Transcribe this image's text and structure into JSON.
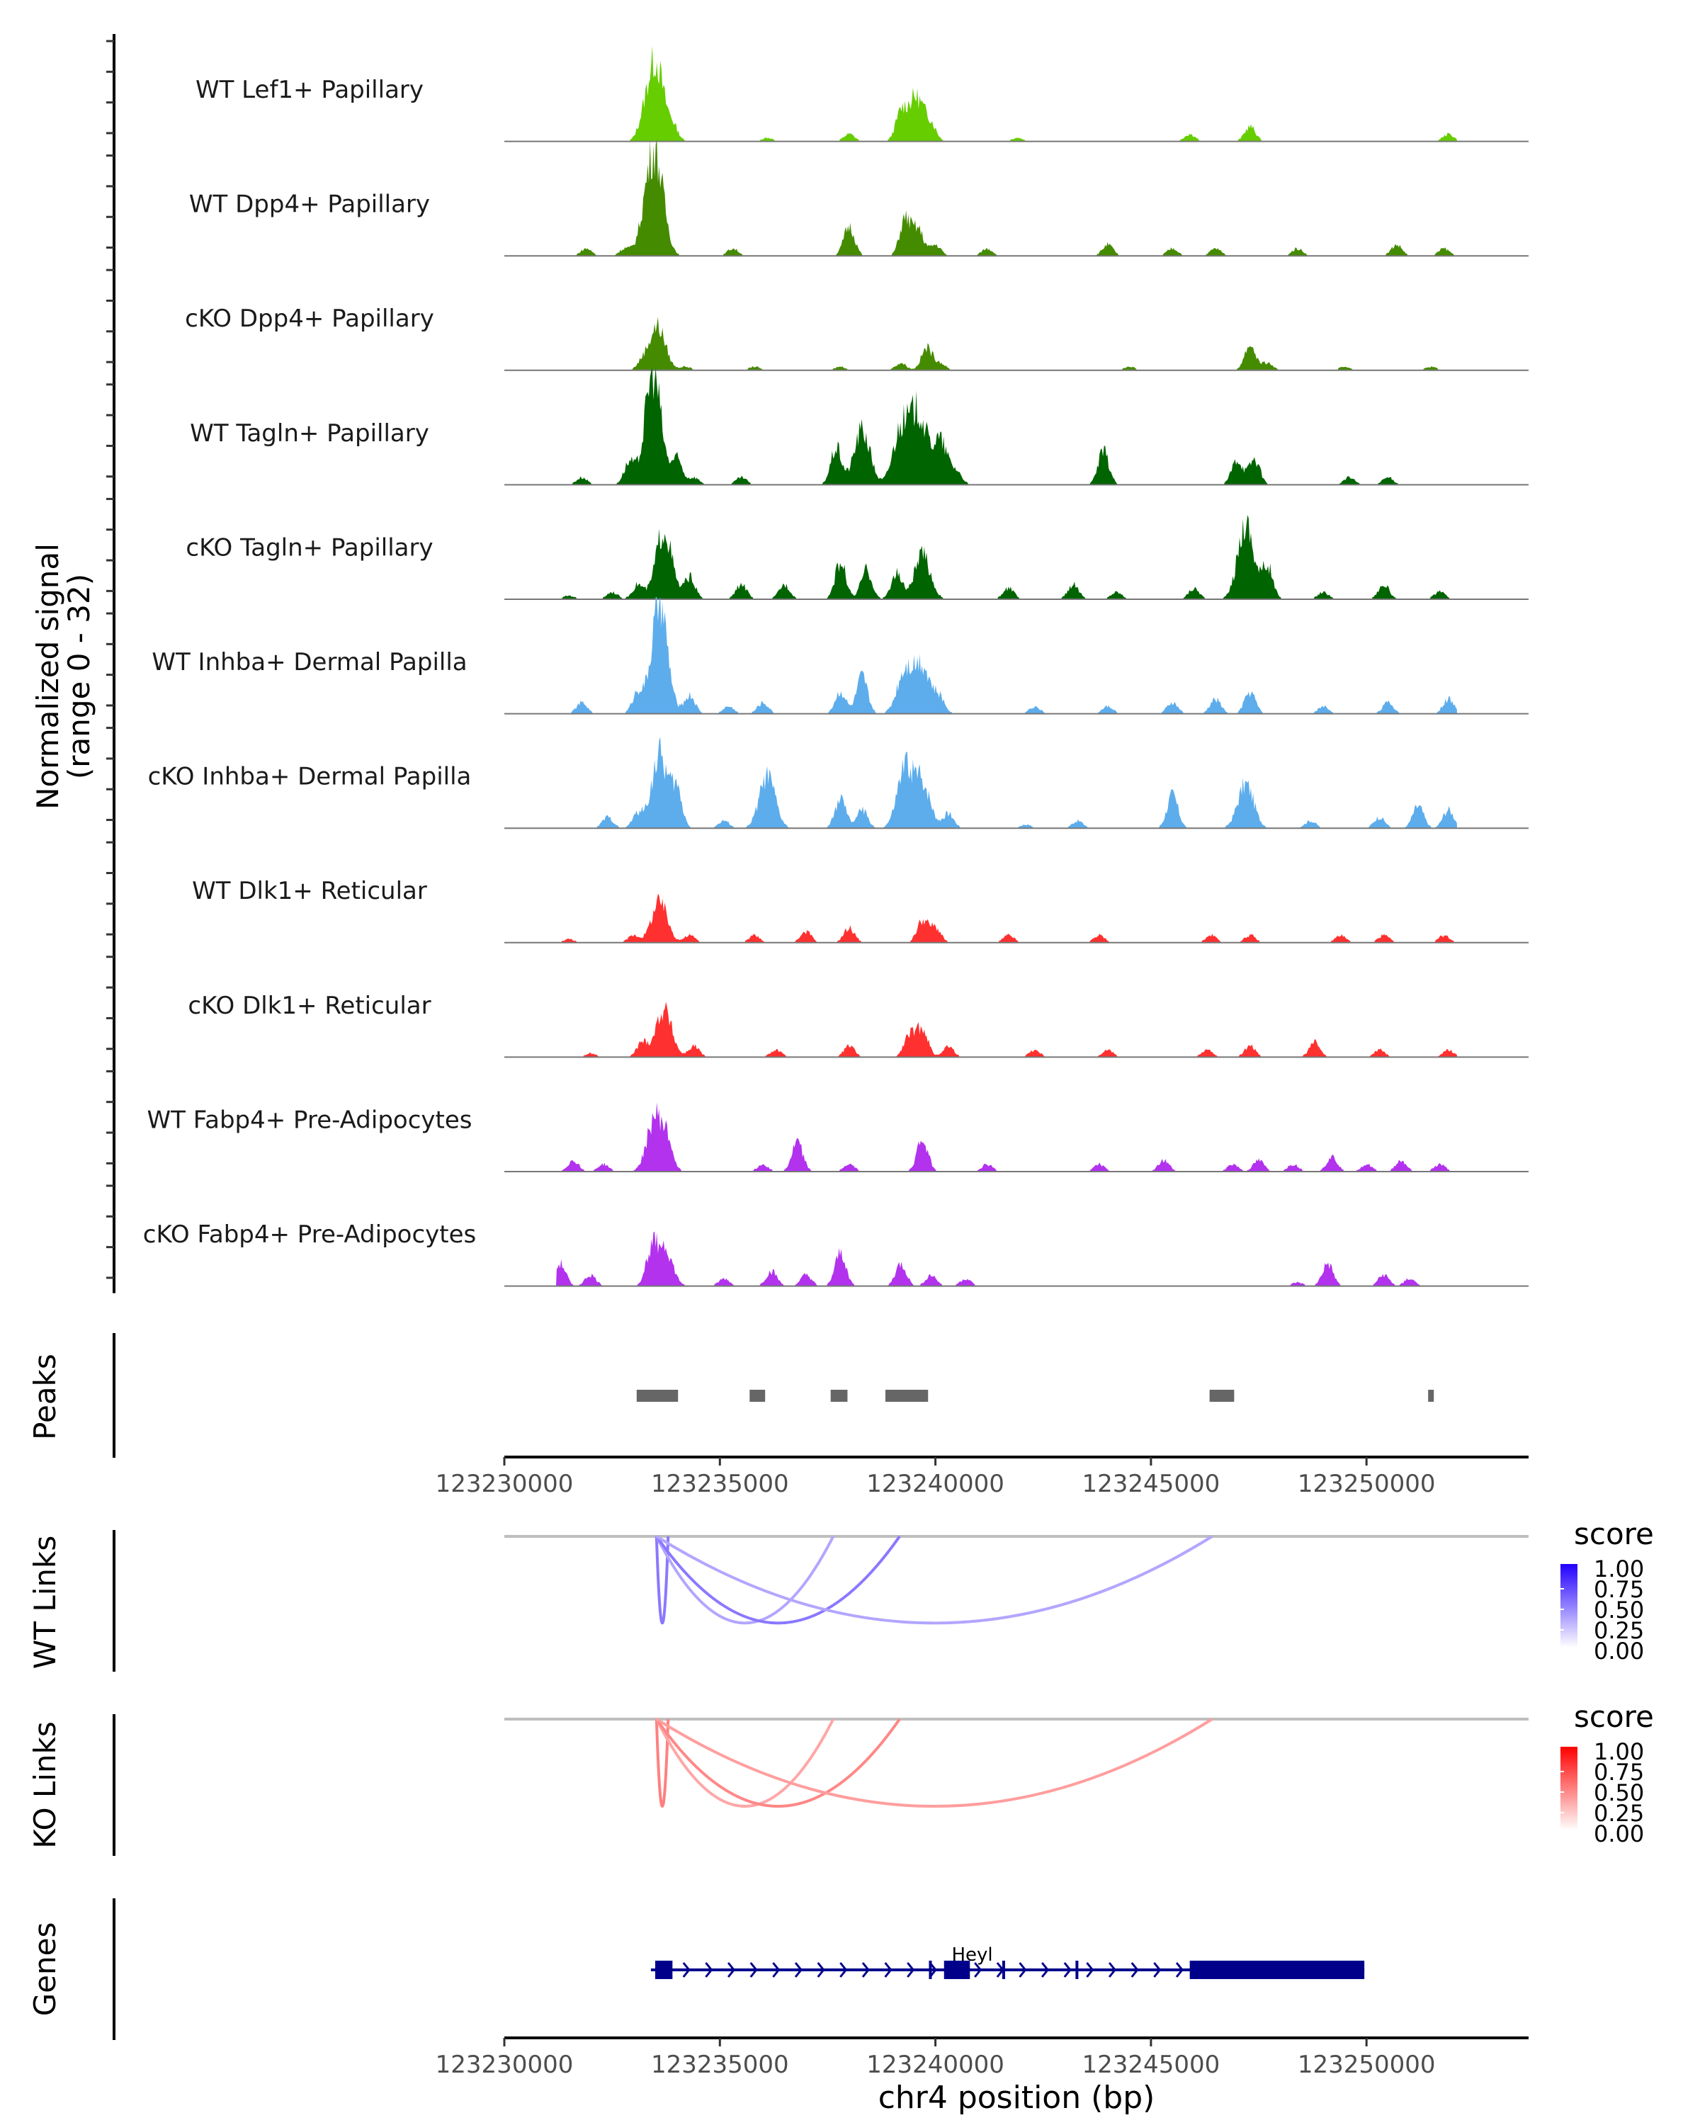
{
  "chart_data": {
    "type": "area",
    "title": "",
    "ylabel": "Normalized signal",
    "ylabel_sub": "(range 0 - 32)",
    "y_range": [
      0,
      32
    ],
    "xlabel": "chr4 position (bp)",
    "x_range": [
      123230000,
      123253760
    ],
    "x_ticks": [
      "123230000",
      "123235000",
      "123240000",
      "123245000",
      "123250000"
    ],
    "x_tick_values": [
      123230000,
      123235000,
      123240000,
      123245000,
      123250000
    ],
    "coverage_tracks": [
      {
        "name": "WT Lef1+ Papillary",
        "color": "#66CD00",
        "peaks": [
          [
            123233500,
            22
          ],
          [
            123233200,
            3
          ],
          [
            123233900,
            4
          ],
          [
            123236100,
            1
          ],
          [
            123238000,
            2
          ],
          [
            123239200,
            7
          ],
          [
            123239550,
            12
          ],
          [
            123239900,
            4
          ],
          [
            123241900,
            1
          ],
          [
            123245900,
            2
          ],
          [
            123247300,
            4
          ],
          [
            123251900,
            2
          ]
        ]
      },
      {
        "name": "WT Dpp4+ Papillary",
        "color": "#458B00",
        "peaks": [
          [
            123231900,
            2
          ],
          [
            123232800,
            2
          ],
          [
            123233350,
            14
          ],
          [
            123233550,
            19
          ],
          [
            123235300,
            2
          ],
          [
            123238000,
            8
          ],
          [
            123239300,
            10
          ],
          [
            123239600,
            7
          ],
          [
            123240000,
            3
          ],
          [
            123241200,
            2
          ],
          [
            123244000,
            3
          ],
          [
            123245500,
            2
          ],
          [
            123246500,
            2
          ],
          [
            123248400,
            2
          ],
          [
            123250700,
            3
          ],
          [
            123251800,
            2
          ]
        ]
      },
      {
        "name": "cKO Dpp4+ Papillary",
        "color": "#458B00",
        "peaks": [
          [
            123233550,
            12
          ],
          [
            123233200,
            2
          ],
          [
            123234200,
            1
          ],
          [
            123235800,
            1
          ],
          [
            123237800,
            1
          ],
          [
            123239200,
            2
          ],
          [
            123239800,
            6
          ],
          [
            123240100,
            2
          ],
          [
            123244500,
            1
          ],
          [
            123247300,
            7
          ],
          [
            123247700,
            2
          ],
          [
            123249500,
            1
          ],
          [
            123251500,
            1
          ]
        ]
      },
      {
        "name": "WT Tagln+ Papillary",
        "color": "#006400",
        "peaks": [
          [
            123231800,
            2
          ],
          [
            123232900,
            6
          ],
          [
            123233450,
            31
          ],
          [
            123234000,
            7
          ],
          [
            123234400,
            2
          ],
          [
            123235500,
            2
          ],
          [
            123237700,
            10
          ],
          [
            123238300,
            15
          ],
          [
            123239200,
            15
          ],
          [
            123239600,
            19
          ],
          [
            123240100,
            12
          ],
          [
            123240500,
            3
          ],
          [
            123243900,
            9
          ],
          [
            123247000,
            7
          ],
          [
            123247400,
            7
          ],
          [
            123249600,
            2
          ],
          [
            123250500,
            2
          ]
        ]
      },
      {
        "name": "cKO Tagln+ Papillary",
        "color": "#006400",
        "peaks": [
          [
            123231500,
            1
          ],
          [
            123232500,
            2
          ],
          [
            123233100,
            4
          ],
          [
            123233700,
            19
          ],
          [
            123234300,
            6
          ],
          [
            123235500,
            4
          ],
          [
            123236500,
            4
          ],
          [
            123237800,
            10
          ],
          [
            123238400,
            8
          ],
          [
            123239100,
            7
          ],
          [
            123239700,
            12
          ],
          [
            123241700,
            3
          ],
          [
            123243200,
            4
          ],
          [
            123244200,
            2
          ],
          [
            123246000,
            3
          ],
          [
            123247200,
            21
          ],
          [
            123247700,
            9
          ],
          [
            123249000,
            2
          ],
          [
            123250400,
            4
          ],
          [
            123251700,
            2
          ]
        ]
      },
      {
        "name": "WT Inhba+ Dermal Papilla",
        "color": "#5DADEC",
        "peaks": [
          [
            123231800,
            3
          ],
          [
            123233100,
            6
          ],
          [
            123233600,
            30
          ],
          [
            123234300,
            5
          ],
          [
            123235200,
            2
          ],
          [
            123236000,
            3
          ],
          [
            123237800,
            6
          ],
          [
            123238300,
            10
          ],
          [
            123239300,
            12
          ],
          [
            123239700,
            13
          ],
          [
            123240100,
            4
          ],
          [
            123242300,
            2
          ],
          [
            123244000,
            2
          ],
          [
            123245500,
            3
          ],
          [
            123246500,
            4
          ],
          [
            123247300,
            6
          ],
          [
            123249000,
            2
          ],
          [
            123250500,
            3
          ],
          [
            123251900,
            4
          ]
        ]
      },
      {
        "name": "cKO Inhba+ Dermal Papilla",
        "color": "#5DADEC",
        "peaks": [
          [
            123232400,
            3
          ],
          [
            123233100,
            4
          ],
          [
            123233600,
            20
          ],
          [
            123234000,
            10
          ],
          [
            123235100,
            2
          ],
          [
            123236100,
            14
          ],
          [
            123237800,
            8
          ],
          [
            123238300,
            5
          ],
          [
            123239300,
            16
          ],
          [
            123239700,
            12
          ],
          [
            123240300,
            4
          ],
          [
            123242100,
            1
          ],
          [
            123243300,
            2
          ],
          [
            123245500,
            9
          ],
          [
            123247200,
            12
          ],
          [
            123248700,
            2
          ],
          [
            123250300,
            3
          ],
          [
            123251200,
            6
          ],
          [
            123251900,
            5
          ]
        ]
      },
      {
        "name": "WT Dlk1+ Reticular",
        "color": "#FF3030",
        "peaks": [
          [
            123231500,
            1
          ],
          [
            123233000,
            2
          ],
          [
            123233600,
            11
          ],
          [
            123234300,
            2
          ],
          [
            123235800,
            2
          ],
          [
            123237000,
            3
          ],
          [
            123238000,
            4
          ],
          [
            123239700,
            6
          ],
          [
            123240000,
            4
          ],
          [
            123241700,
            2
          ],
          [
            123243800,
            2
          ],
          [
            123246400,
            2
          ],
          [
            123247300,
            2
          ],
          [
            123249400,
            2
          ],
          [
            123250400,
            2
          ],
          [
            123251800,
            2
          ]
        ]
      },
      {
        "name": "cKO Dlk1+ Reticular",
        "color": "#FF3030",
        "peaks": [
          [
            123232000,
            1
          ],
          [
            123233200,
            4
          ],
          [
            123233700,
            13
          ],
          [
            123234400,
            3
          ],
          [
            123236300,
            2
          ],
          [
            123238000,
            3
          ],
          [
            123239400,
            6
          ],
          [
            123239700,
            8
          ],
          [
            123240300,
            3
          ],
          [
            123242300,
            2
          ],
          [
            123244000,
            2
          ],
          [
            123246300,
            2
          ],
          [
            123247300,
            3
          ],
          [
            123248800,
            4
          ],
          [
            123250300,
            2
          ],
          [
            123251900,
            2
          ]
        ]
      },
      {
        "name": "WT Fabp4+ Pre-Adipocytes",
        "color": "#B232EE",
        "peaks": [
          [
            123231600,
            3
          ],
          [
            123232300,
            2
          ],
          [
            123233500,
            15
          ],
          [
            123233800,
            6
          ],
          [
            123236000,
            2
          ],
          [
            123236800,
            8
          ],
          [
            123238000,
            2
          ],
          [
            123239700,
            9
          ],
          [
            123241200,
            2
          ],
          [
            123243800,
            2
          ],
          [
            123245300,
            3
          ],
          [
            123246900,
            2
          ],
          [
            123247500,
            3
          ],
          [
            123248300,
            2
          ],
          [
            123249200,
            4
          ],
          [
            123250000,
            2
          ],
          [
            123250800,
            3
          ],
          [
            123251700,
            2
          ]
        ]
      },
      {
        "name": "cKO Fabp4+ Pre-Adipocytes",
        "color": "#B232EE",
        "peaks": [
          [
            123231300,
            6
          ],
          [
            123232000,
            3
          ],
          [
            123233400,
            8
          ],
          [
            123233700,
            11
          ],
          [
            123235100,
            2
          ],
          [
            123236200,
            4
          ],
          [
            123237000,
            3
          ],
          [
            123237800,
            9
          ],
          [
            123239200,
            6
          ],
          [
            123239900,
            3
          ],
          [
            123240700,
            2
          ],
          [
            123248400,
            1
          ],
          [
            123249100,
            6
          ],
          [
            123250400,
            3
          ],
          [
            123251000,
            2
          ]
        ]
      }
    ],
    "peaks_track": {
      "label": "Peaks",
      "color": "#666666",
      "regions": [
        [
          123233070,
          123234030
        ],
        [
          123235690,
          123236050
        ],
        [
          123237570,
          123237960
        ],
        [
          123238840,
          123239830
        ],
        [
          123246360,
          123246930
        ],
        [
          123251430,
          123251550
        ]
      ]
    },
    "links_tracks": [
      {
        "label": "WT Links",
        "legend_title": "score",
        "color_high": "#2300FF",
        "color_low": "#FFFFFF",
        "legend_ticks": [
          "1.00",
          "0.75",
          "0.50",
          "0.25",
          "0.00"
        ],
        "links": [
          {
            "start": 123233530,
            "end": 123233800,
            "score": 0.55
          },
          {
            "start": 123233530,
            "end": 123237630,
            "score": 0.25
          },
          {
            "start": 123233530,
            "end": 123239170,
            "score": 0.55
          },
          {
            "start": 123233530,
            "end": 123246420,
            "score": 0.25
          }
        ]
      },
      {
        "label": "KO Links",
        "legend_title": "score",
        "color_high": "#FF0000",
        "color_low": "#FFFFFF",
        "legend_ticks": [
          "1.00",
          "0.75",
          "0.50",
          "0.25",
          "0.00"
        ],
        "links": [
          {
            "start": 123233530,
            "end": 123233800,
            "score": 0.5
          },
          {
            "start": 123233530,
            "end": 123237630,
            "score": 0.25
          },
          {
            "start": 123233530,
            "end": 123239170,
            "score": 0.45
          },
          {
            "start": 123233530,
            "end": 123246420,
            "score": 0.3
          }
        ]
      }
    ],
    "genes_track": {
      "label": "Genes",
      "color": "#00008B",
      "genes": [
        {
          "name": "Heyl",
          "strand": "+",
          "start": 123233400,
          "end": 123249950,
          "exons": [
            [
              123233500,
              123233900
            ],
            [
              123239850,
              123239900
            ],
            [
              123240200,
              123240800
            ],
            [
              123241550,
              123241600
            ],
            [
              123243250,
              123243300
            ],
            [
              123245900,
              123249950
            ]
          ]
        }
      ]
    }
  }
}
